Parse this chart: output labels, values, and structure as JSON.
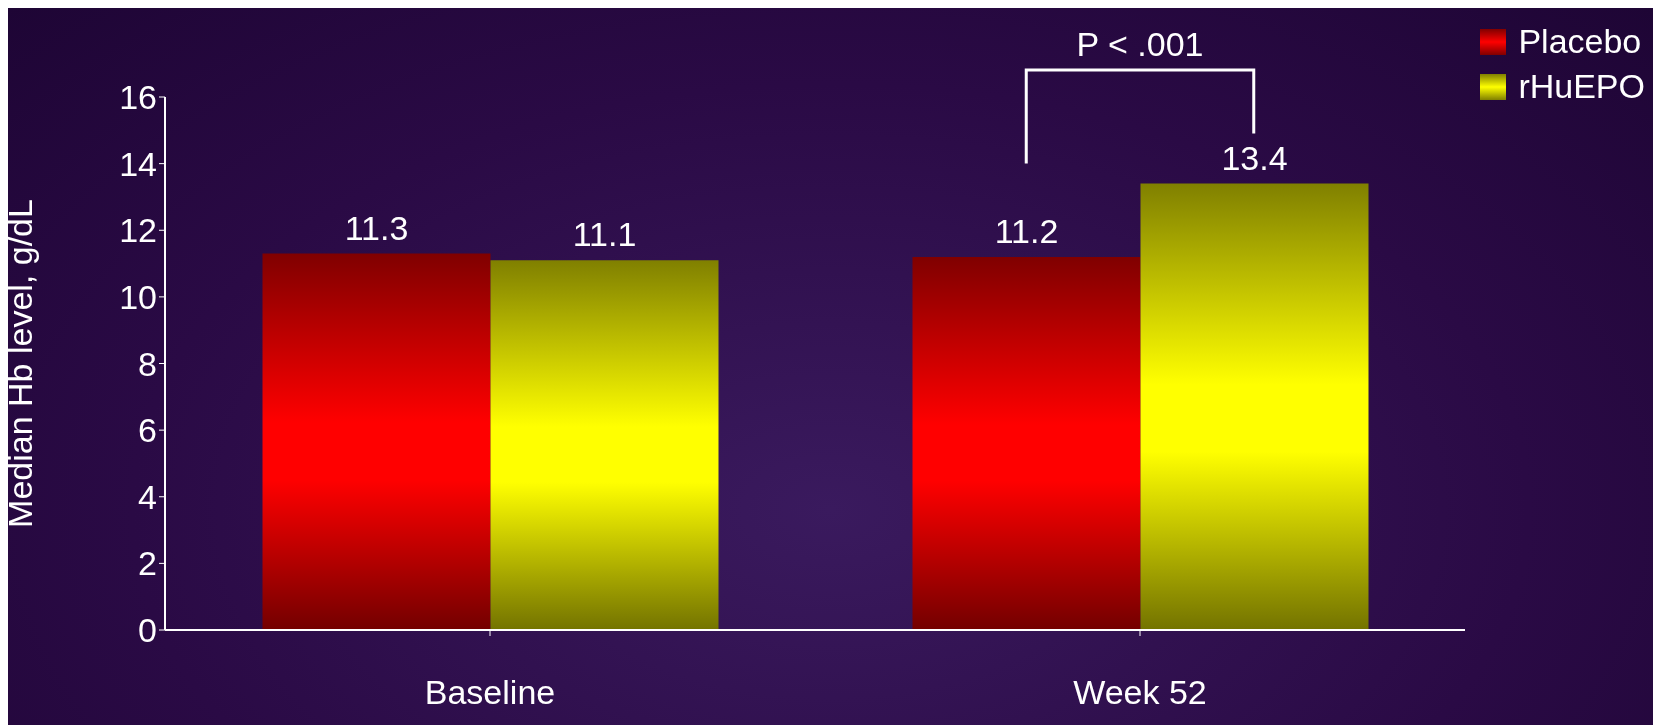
{
  "chart_data": {
    "type": "bar",
    "ylabel": "Median Hb level, g/dL",
    "categories": [
      "Baseline",
      "Week 52"
    ],
    "series": [
      {
        "name": "Placebo",
        "color": "#ff0000",
        "values": [
          11.3,
          11.2
        ]
      },
      {
        "name": "rHuEPO",
        "color": "#ffff00",
        "values": [
          11.1,
          13.4
        ]
      }
    ],
    "ylim": [
      0,
      16
    ],
    "yticks": [
      0,
      2,
      4,
      6,
      8,
      10,
      12,
      14,
      16
    ],
    "grid": false,
    "legend": "top right",
    "data_labels": true,
    "annotations": [
      "P < .001"
    ]
  }
}
